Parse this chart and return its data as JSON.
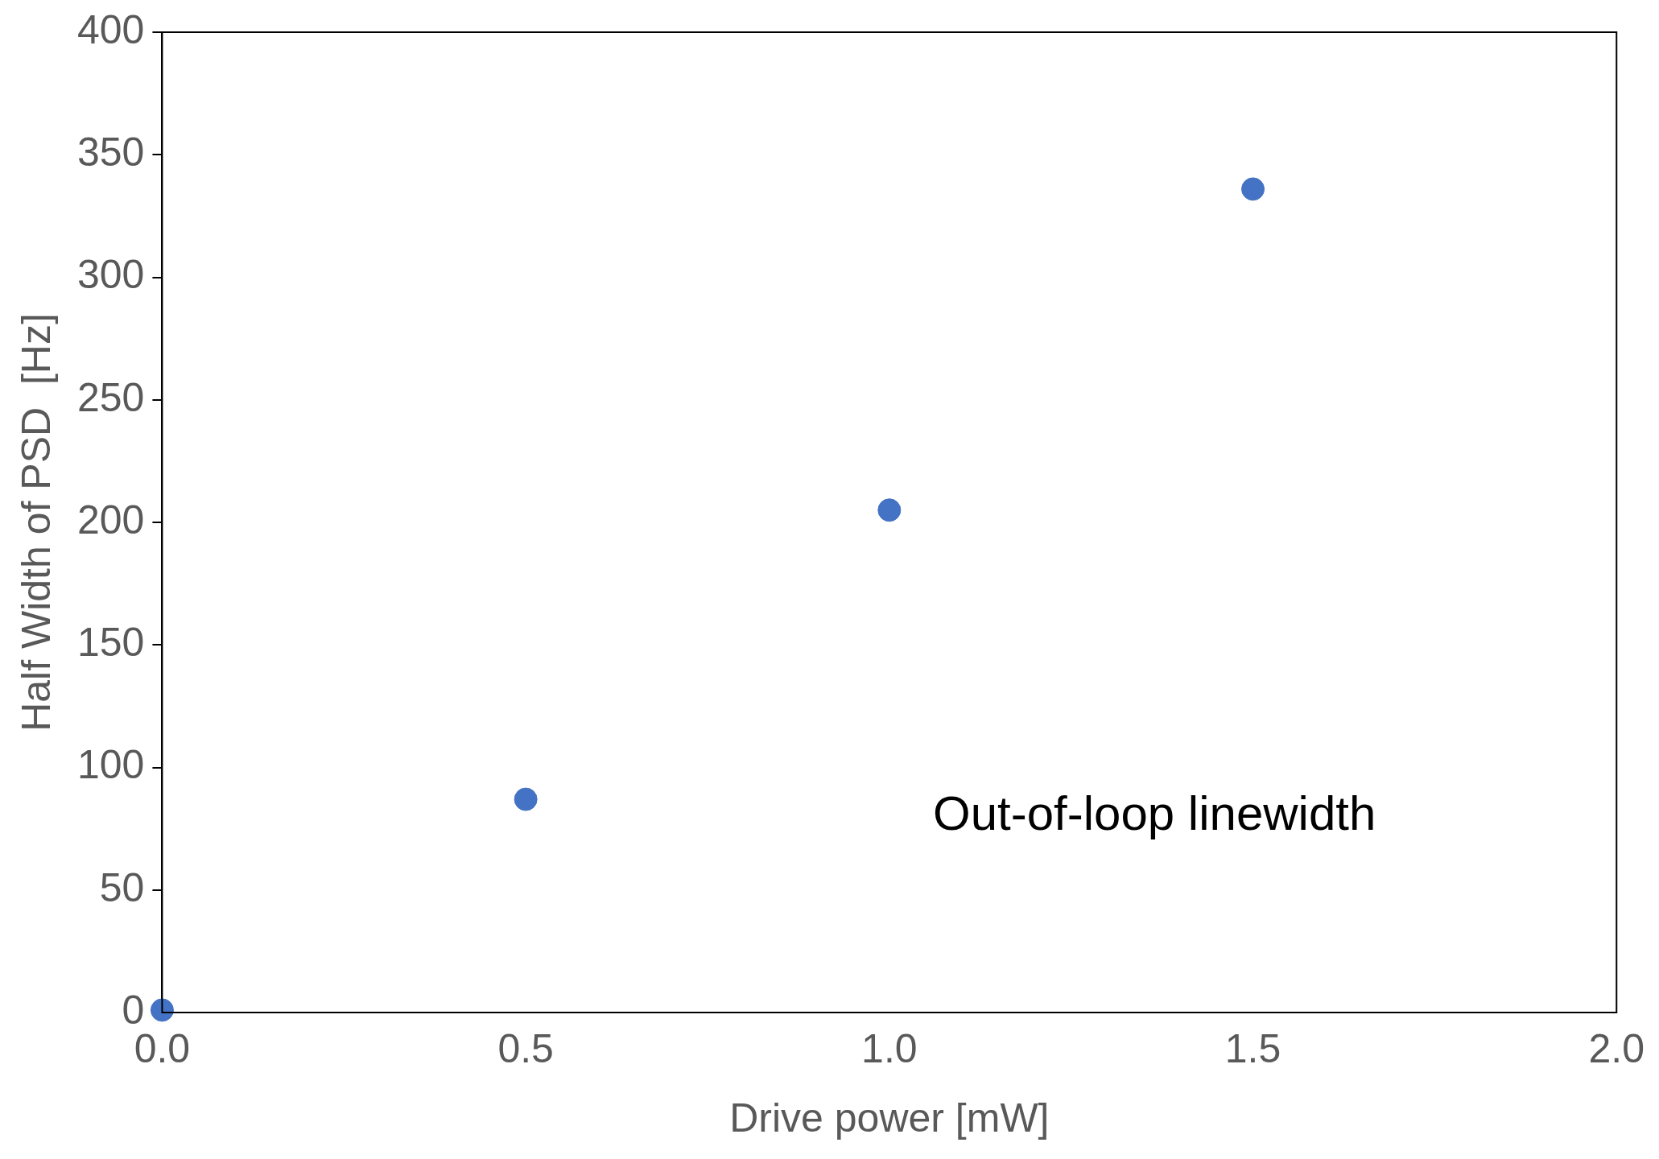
{
  "chart_data": {
    "type": "scatter",
    "xlabel": "Drive power [mW]",
    "ylabel": "Half Width of PSD  [Hz]",
    "x": [
      0,
      0.5,
      1.0,
      1.5
    ],
    "series": [
      {
        "color": "#4472c4",
        "values": [
          1,
          87,
          205,
          336
        ]
      }
    ],
    "xlim": [
      0,
      2
    ],
    "xticks": [
      {
        "value": 0,
        "label": "0.0"
      },
      {
        "value": 0.5,
        "label": "0.5"
      },
      {
        "value": 1,
        "label": "1.0"
      },
      {
        "value": 1.5,
        "label": "1.5"
      },
      {
        "value": 2,
        "label": "2.0"
      }
    ],
    "ylim": [
      0,
      400
    ],
    "yticks": [
      0,
      50,
      100,
      150,
      200,
      250,
      300,
      350,
      400
    ],
    "grid": false,
    "legend": false,
    "marker": "circle",
    "annotations": [
      "Out-of-loop linewidth"
    ]
  }
}
